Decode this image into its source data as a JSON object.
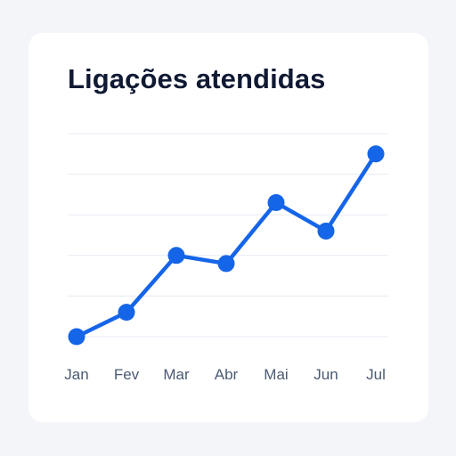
{
  "chart_data": {
    "type": "line",
    "title": "Ligações atendidas",
    "categories": [
      "Jan",
      "Fev",
      "Mar",
      "Abr",
      "Mai",
      "Jun",
      "Jul"
    ],
    "series": [
      {
        "values": [
          0,
          6,
          20,
          18,
          33,
          26,
          45
        ]
      }
    ],
    "ylim": [
      0,
      50
    ],
    "grid": true,
    "line_color": "#1565e8",
    "grid_color": "#e6ebf3"
  }
}
